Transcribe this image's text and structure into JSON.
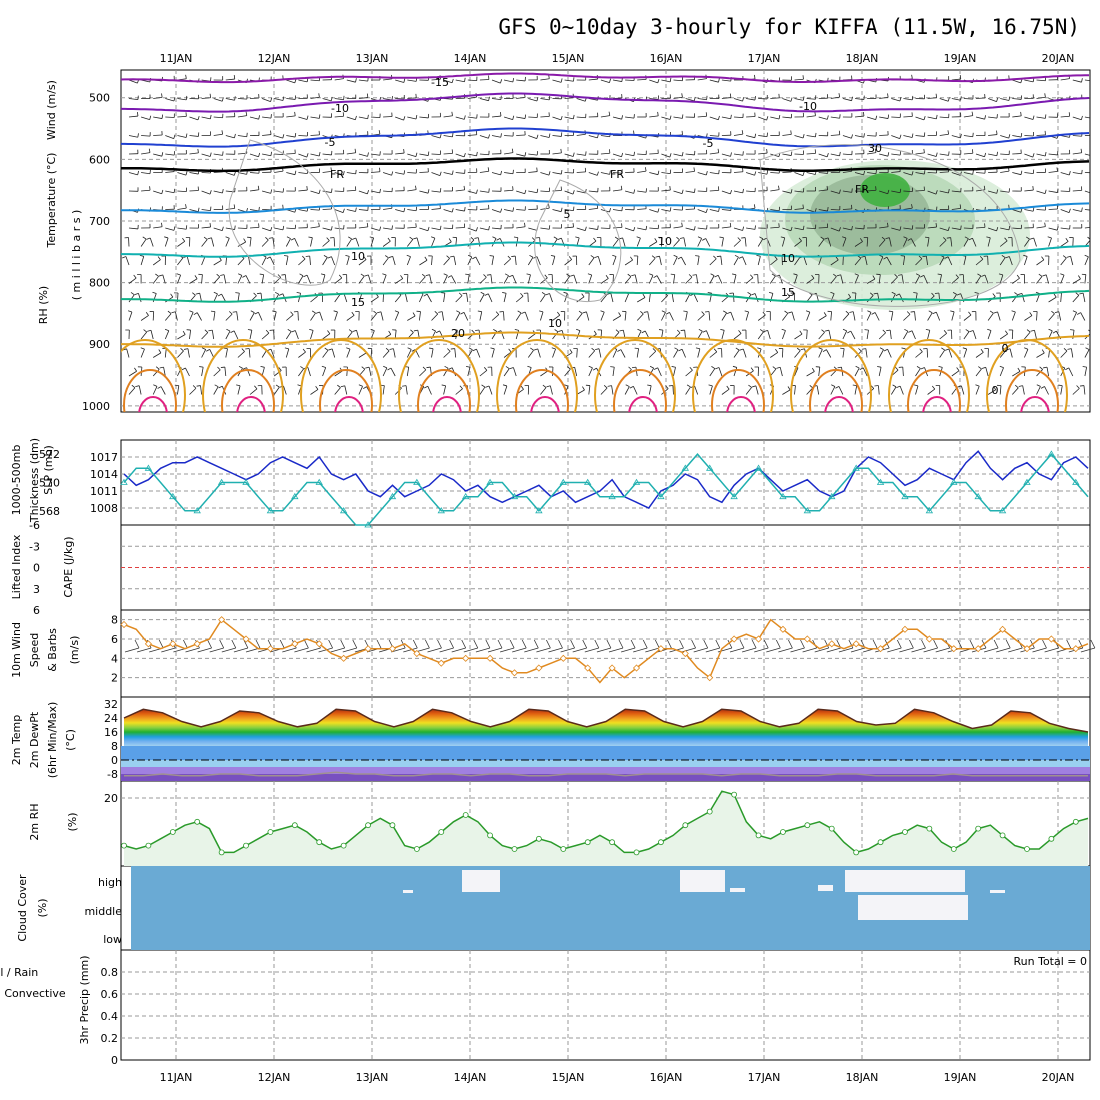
{
  "title": "GFS 0~10day 3-hourly for KIFFA (11.5W, 16.75N)",
  "dates": [
    "11JAN",
    "12JAN",
    "13JAN",
    "14JAN",
    "15JAN",
    "16JAN",
    "17JAN",
    "18JAN",
    "19JAN",
    "20JAN"
  ],
  "colors": {
    "grid": "#999999",
    "temp15": "#8a1aa8",
    "temp10": "#7a1ab0",
    "tempm5": "#2040d0",
    "temp5": "#1a8ad8",
    "tempm10": "#10b0b0",
    "temp15b": "#10b088",
    "temp20": "#e0a020",
    "temp25": "#e08020",
    "temp30": "#e02080",
    "freeze": "#000000",
    "rh": "#3a8a3a",
    "slp": "#1a2ac8",
    "thick": "#20b0b0",
    "wind": "#e08a20",
    "rh2m": "#2a9a2a",
    "cloud": "#6aaad4",
    "lifted": "#e04040"
  },
  "panels": {
    "upper": {
      "ylabels": [
        "Wind (m/s)",
        "Temperature (°C)",
        "RH (%)",
        "( m i l l i b a r s )"
      ],
      "ticks": [
        "500",
        "600",
        "700",
        "800",
        "900",
        "1000"
      ],
      "temp_labels": [
        "-15",
        "-10",
        "-5",
        "FR",
        "FR",
        "FR",
        "5",
        "10",
        "10",
        "15",
        "15",
        "20",
        "10",
        "10",
        "30",
        "0",
        "0"
      ]
    },
    "slp": {
      "ylabels": [
        "1000-500mb",
        "Thickness (dm)",
        "SLP (mb)"
      ],
      "thick_ticks": [
        "572",
        "570",
        "568"
      ],
      "slp_ticks": [
        "1017",
        "1014",
        "1011",
        "1008"
      ]
    },
    "cape": {
      "ylabels": [
        "Lifted Index",
        "CAPE (J/kg)"
      ],
      "ticks": [
        "-6",
        "-3",
        "0",
        "3",
        "6"
      ]
    },
    "wind10m": {
      "ylabels": [
        "10m Wind",
        "Speed",
        "& Barbs",
        "(m/s)"
      ],
      "ticks": [
        "8",
        "6",
        "4",
        "2"
      ]
    },
    "temp2m": {
      "ylabels": [
        "2m Temp",
        "2m DewPt",
        "(6hr Min/Max)",
        "(°C)"
      ],
      "ticks": [
        "32",
        "24",
        "16",
        "8",
        "0",
        "-8"
      ]
    },
    "rh2m": {
      "ylabels": [
        "2m RH",
        "(%)"
      ],
      "ticks": [
        "20"
      ]
    },
    "cloud": {
      "ylabels": [
        "Cloud Cover",
        "(%)"
      ],
      "levels": [
        "high",
        "middle",
        "low"
      ]
    },
    "precip": {
      "ylabels": [
        "Total / Rain",
        "Convective",
        "3hr Precip (mm)"
      ],
      "ticks": [
        "0.8",
        "0.6",
        "0.4",
        "0.2",
        "0"
      ],
      "run_total": "Run Total = 0"
    }
  },
  "chart_data": [
    {
      "type": "line",
      "title": "GFS 0~10day 3-hourly for KIFFA (11.5W, 16.75N)",
      "panel": "SLP / Thickness",
      "series": [
        {
          "name": "SLP (mb)",
          "values": [
            1014,
            1012,
            1013,
            1015,
            1016,
            1016,
            1017,
            1016,
            1015,
            1014,
            1013,
            1014,
            1016,
            1017,
            1016,
            1015,
            1017,
            1014,
            1013,
            1014,
            1011,
            1010,
            1012,
            1010,
            1011,
            1012,
            1014,
            1013,
            1011,
            1012,
            1010,
            1009,
            1010,
            1011,
            1012,
            1010,
            1011,
            1009,
            1010,
            1011,
            1013,
            1010,
            1009,
            1008,
            1011,
            1012,
            1014,
            1013,
            1010,
            1009,
            1012,
            1014,
            1015,
            1013,
            1011,
            1012,
            1013,
            1011,
            1010,
            1011,
            1015,
            1017,
            1016,
            1014,
            1012,
            1013,
            1015,
            1014,
            1013,
            1016,
            1018,
            1015,
            1013,
            1015,
            1016,
            1014,
            1013,
            1016,
            1017,
            1015
          ]
        },
        {
          "name": "1000-500mb Thickness (dm)",
          "values": [
            570,
            571,
            571,
            570,
            569,
            568,
            568,
            569,
            570,
            570,
            570,
            569,
            568,
            568,
            569,
            570,
            570,
            569,
            568,
            567,
            567,
            568,
            569,
            570,
            570,
            569,
            568,
            568,
            569,
            569,
            570,
            570,
            569,
            569,
            568,
            569,
            570,
            570,
            570,
            569,
            569,
            569,
            570,
            570,
            569,
            570,
            571,
            572,
            571,
            570,
            569,
            570,
            571,
            570,
            569,
            569,
            568,
            568,
            569,
            570,
            571,
            571,
            570,
            570,
            569,
            569,
            568,
            569,
            570,
            570,
            569,
            568,
            568,
            569,
            570,
            571,
            572,
            571,
            570,
            569
          ]
        }
      ],
      "ylim_slp": [
        1005,
        1020
      ],
      "ylim_thick": [
        567,
        573
      ]
    },
    {
      "type": "line",
      "panel": "10m Wind Speed",
      "series": [
        {
          "name": "10m Wind Speed (m/s)",
          "values": [
            7.5,
            7,
            5.5,
            5,
            5.5,
            5,
            5.5,
            6,
            8,
            7,
            6,
            5,
            5,
            5,
            5.5,
            6,
            5.5,
            4.5,
            4,
            4.5,
            5,
            5,
            5,
            5.5,
            4.5,
            4,
            3.5,
            4,
            4,
            4,
            4,
            3,
            2.5,
            2.5,
            3,
            3.5,
            4,
            4,
            3,
            1.5,
            3,
            2,
            3,
            4,
            5,
            5,
            4.5,
            3,
            2,
            5,
            6,
            6.5,
            6,
            8,
            7,
            6,
            6,
            5,
            5.5,
            5,
            5.5,
            5,
            5,
            6,
            7,
            7,
            6,
            6,
            5,
            5,
            5,
            6,
            7,
            6,
            5,
            6,
            6,
            5,
            5,
            5.5
          ]
        }
      ],
      "ylim": [
        0,
        9
      ]
    },
    {
      "type": "line",
      "panel": "2m Temp",
      "series": [
        {
          "name": "2m Temp (°C)",
          "values": [
            24,
            29,
            27,
            22,
            19,
            22,
            28,
            27,
            22,
            19,
            21,
            29,
            28,
            22,
            19,
            22,
            29,
            27,
            22,
            19,
            22,
            29,
            28,
            22,
            19,
            22,
            29,
            28,
            22,
            19,
            22,
            29,
            28,
            22,
            19,
            21,
            29,
            28,
            22,
            20,
            21,
            29,
            27,
            22,
            18,
            20,
            28,
            27,
            21,
            18,
            16
          ]
        },
        {
          "name": "2m DewPt (°C)",
          "values": [
            -9,
            -9,
            -8,
            -9,
            -9,
            -8,
            -8,
            -9,
            -9,
            -9,
            -8,
            -7,
            -8,
            -8,
            -9,
            -9,
            -8,
            -8,
            -9,
            -8,
            -8,
            -9,
            -9,
            -8,
            -8,
            -8,
            -9,
            -8,
            -8,
            -8,
            -8,
            -9,
            -8,
            -8,
            -9,
            -9,
            -9,
            -8,
            -8,
            -9,
            -9,
            -9,
            -9,
            -8,
            -9,
            -9,
            -9,
            -9,
            -9,
            -9,
            -9
          ]
        }
      ],
      "ylim": [
        -12,
        36
      ]
    },
    {
      "type": "line",
      "panel": "2m RH",
      "series": [
        {
          "name": "2m RH (%)",
          "values": [
            6,
            5,
            6,
            8,
            10,
            12,
            13,
            11,
            4,
            4,
            6,
            8,
            10,
            11,
            12,
            10,
            7,
            5,
            6,
            9,
            12,
            14,
            12,
            6,
            5,
            7,
            10,
            13,
            15,
            13,
            9,
            6,
            5,
            6,
            8,
            7,
            5,
            6,
            7,
            9,
            7,
            4,
            4,
            5,
            7,
            9,
            12,
            14,
            16,
            22,
            21,
            13,
            9,
            8,
            10,
            11,
            12,
            13,
            11,
            7,
            4,
            5,
            7,
            9,
            10,
            12,
            11,
            7,
            5,
            7,
            11,
            12,
            9,
            6,
            5,
            5,
            8,
            11,
            13,
            14
          ]
        }
      ],
      "ylim": [
        0,
        25
      ]
    },
    {
      "type": "bar",
      "panel": "3hr Precip",
      "series": [
        {
          "name": "3hr Precip (mm)",
          "values": [
            0,
            0,
            0,
            0,
            0,
            0,
            0,
            0,
            0,
            0
          ]
        }
      ],
      "ylim": [
        0,
        1
      ]
    }
  ]
}
